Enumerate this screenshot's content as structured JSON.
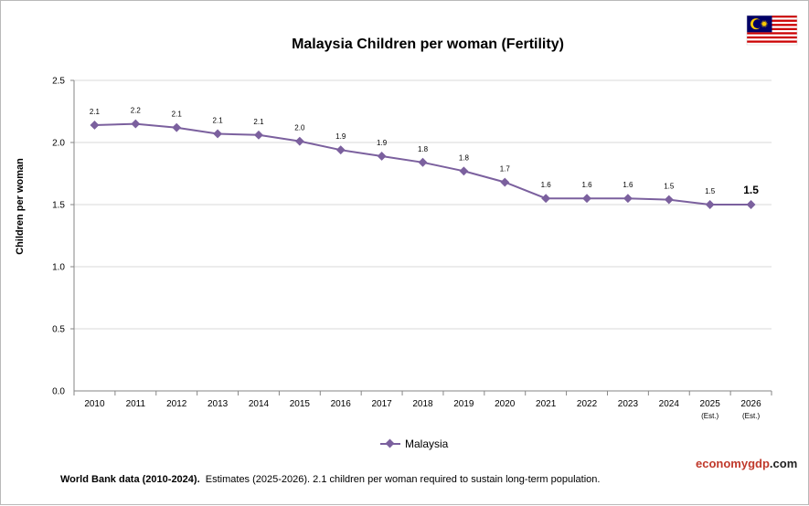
{
  "chart_data": {
    "type": "line",
    "title": "Malaysia Children per woman (Fertility)",
    "ylabel": "Children per woman",
    "xlabel": "",
    "ylim": [
      0,
      2.5
    ],
    "yticks": [
      "0.0",
      "0.5",
      "1.0",
      "1.5",
      "2.0",
      "2.5"
    ],
    "categories": [
      "2010",
      "2011",
      "2012",
      "2013",
      "2014",
      "2015",
      "2016",
      "2017",
      "2018",
      "2019",
      "2020",
      "2021",
      "2022",
      "2023",
      "2024",
      "2025",
      "2026"
    ],
    "category_sublabels": [
      "",
      "",
      "",
      "",
      "",
      "",
      "",
      "",
      "",
      "",
      "",
      "",
      "",
      "",
      "",
      "(Est.)",
      "(Est.)"
    ],
    "grid": true,
    "legend": "bottom",
    "series": [
      {
        "name": "Malaysia",
        "color": "#7b609e",
        "values": [
          2.14,
          2.15,
          2.12,
          2.07,
          2.06,
          2.01,
          1.94,
          1.89,
          1.84,
          1.77,
          1.68,
          1.55,
          1.55,
          1.55,
          1.54,
          1.5,
          1.5
        ],
        "labels": [
          "2.1",
          "2.2",
          "2.1",
          "2.1",
          "2.1",
          "2.0",
          "1.9",
          "1.9",
          "1.8",
          "1.8",
          "1.7",
          "1.6",
          "1.6",
          "1.6",
          "1.5",
          "1.5",
          "1.5"
        ]
      }
    ]
  },
  "footer": {
    "source_bold": "World Bank data (2010-2024).",
    "note": "Estimates  (2025-2026).  2.1 children per woman required to sustain long-term population."
  },
  "brand": {
    "part1": "economy",
    "part2": "gdp",
    "part3": ".com"
  },
  "flag": {
    "name": "malaysia-flag-icon",
    "stripe_red": "#cc0001",
    "canton_blue": "#010066",
    "emblem_yellow": "#ffcc00"
  }
}
